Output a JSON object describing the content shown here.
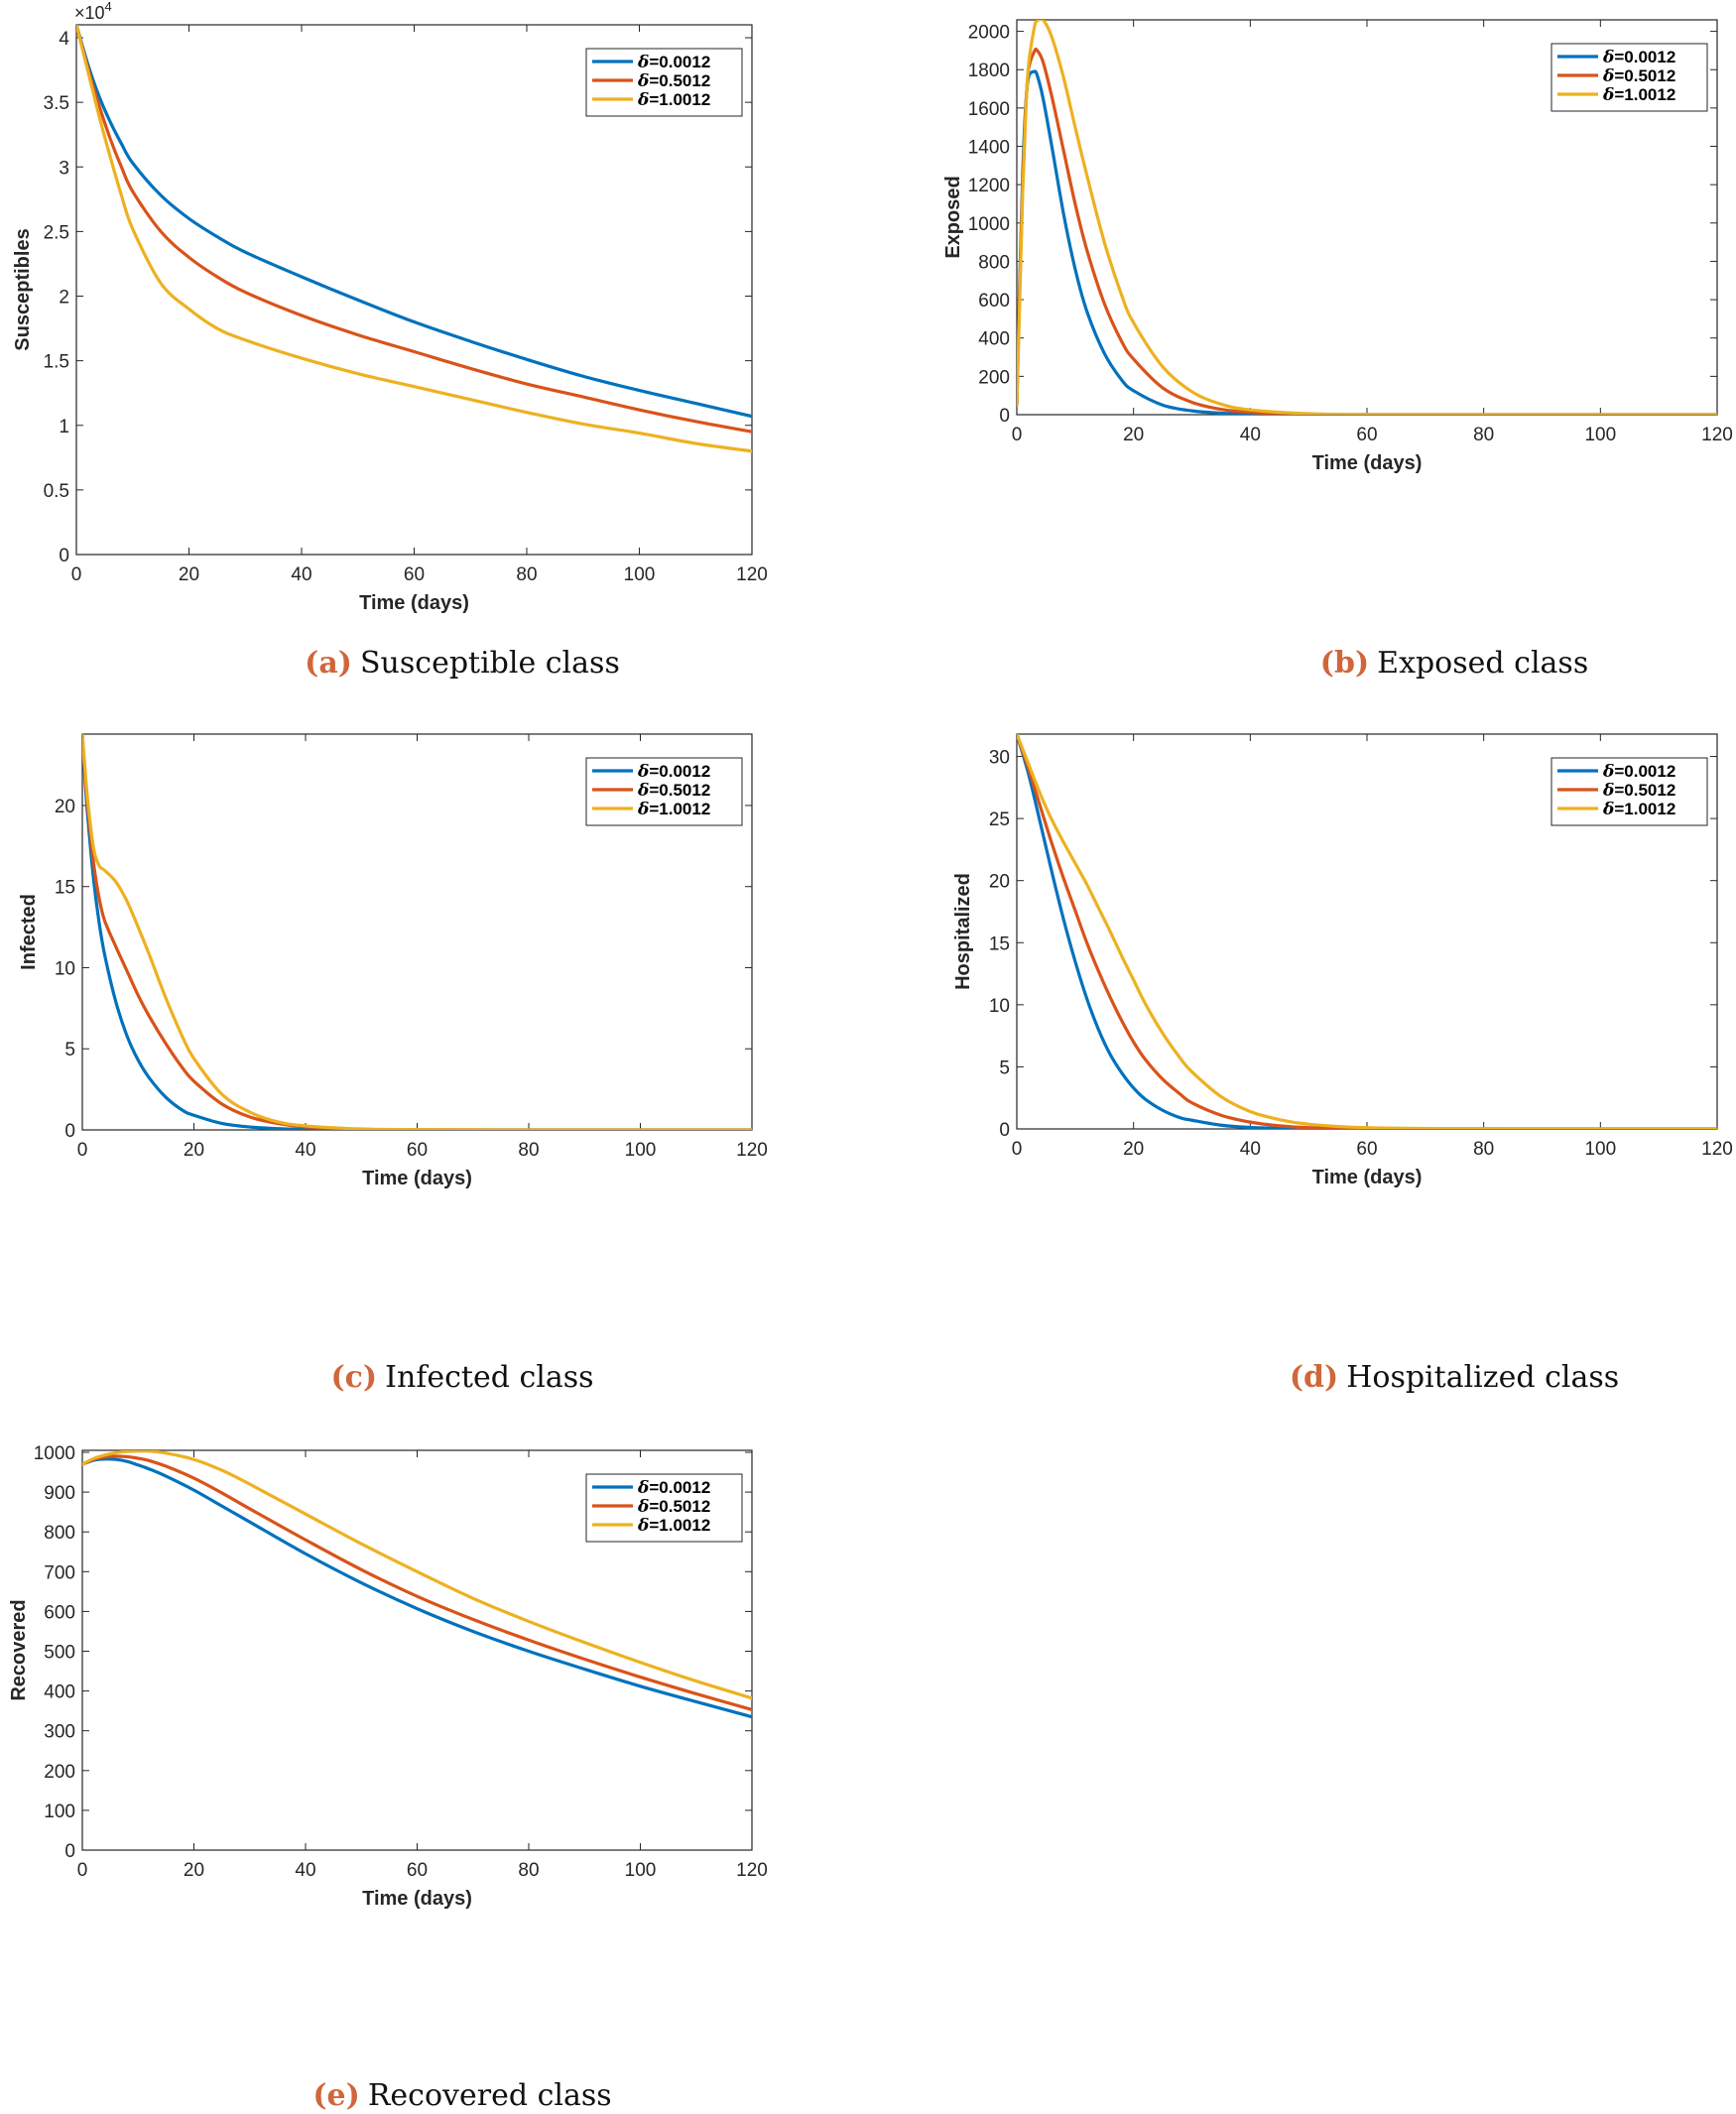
{
  "legend_colors": {
    "blue": "#0072bd",
    "red": "#d95319",
    "yellow": "#edb120"
  },
  "chart_data": [
    {
      "id": "a",
      "type": "line",
      "caption_label": "(a)",
      "caption_text": "Susceptible class",
      "xlabel": "Time (days)",
      "ylabel": "Susceptibles",
      "y_exponent": "×10",
      "y_exponent_power": "4",
      "xlim": [
        0,
        120
      ],
      "ylim": [
        0,
        4.1
      ],
      "xticks": [
        0,
        20,
        40,
        60,
        80,
        100,
        120
      ],
      "yticks": [
        0,
        0.5,
        1,
        1.5,
        2,
        2.5,
        3,
        3.5,
        4
      ],
      "ytick_labels": [
        "0",
        "0.5",
        "1",
        "1.5",
        "2",
        "2.5",
        "3",
        "3.5",
        "4"
      ],
      "legend_position": "top-right",
      "x": [
        0,
        2,
        4,
        6,
        8,
        10,
        15,
        20,
        25,
        30,
        40,
        50,
        60,
        70,
        80,
        90,
        100,
        110,
        120
      ],
      "series": [
        {
          "name": "δ=0.0012",
          "color": "#0072bd",
          "values": [
            4.1,
            3.8,
            3.55,
            3.35,
            3.18,
            3.03,
            2.78,
            2.6,
            2.46,
            2.34,
            2.15,
            1.97,
            1.8,
            1.65,
            1.51,
            1.38,
            1.27,
            1.17,
            1.07
          ]
        },
        {
          "name": "δ=0.5012",
          "color": "#d95319",
          "values": [
            4.1,
            3.77,
            3.48,
            3.22,
            3.0,
            2.81,
            2.5,
            2.3,
            2.15,
            2.03,
            1.85,
            1.7,
            1.57,
            1.44,
            1.32,
            1.22,
            1.12,
            1.03,
            0.95
          ]
        },
        {
          "name": "δ=1.0012",
          "color": "#edb120",
          "values": [
            4.1,
            3.75,
            3.4,
            3.08,
            2.78,
            2.52,
            2.1,
            1.9,
            1.75,
            1.66,
            1.52,
            1.4,
            1.3,
            1.2,
            1.1,
            1.01,
            0.94,
            0.86,
            0.8
          ]
        }
      ]
    },
    {
      "id": "b",
      "type": "line",
      "caption_label": "(b)",
      "caption_text": "Exposed class",
      "xlabel": "Time (days)",
      "ylabel": "Exposed",
      "xlim": [
        0,
        120
      ],
      "ylim": [
        0,
        2060
      ],
      "xticks": [
        0,
        20,
        40,
        60,
        80,
        100,
        120
      ],
      "yticks": [
        0,
        200,
        400,
        600,
        800,
        1000,
        1200,
        1400,
        1600,
        1800,
        2000
      ],
      "ytick_labels": [
        "0",
        "200",
        "400",
        "600",
        "800",
        "1000",
        "1200",
        "1400",
        "1600",
        "1800",
        "2000"
      ],
      "legend_position": "top-right",
      "x": [
        0,
        0.5,
        1,
        1.5,
        2,
        3,
        3.5,
        4.5,
        6,
        8,
        10,
        12,
        15,
        18,
        20,
        25,
        30,
        35,
        40,
        50,
        60,
        80,
        100,
        120
      ],
      "series": [
        {
          "name": "δ=0.0012",
          "color": "#0072bd",
          "values": [
            50,
            700,
            1250,
            1600,
            1760,
            1790,
            1770,
            1650,
            1400,
            1050,
            760,
            540,
            320,
            180,
            125,
            50,
            20,
            8,
            3,
            0.5,
            0,
            0,
            0,
            0
          ]
        },
        {
          "name": "δ=0.5012",
          "color": "#d95319",
          "values": [
            50,
            650,
            1200,
            1580,
            1800,
            1895,
            1900,
            1840,
            1660,
            1380,
            1100,
            860,
            580,
            380,
            290,
            140,
            65,
            28,
            12,
            2,
            0.3,
            0,
            0,
            0
          ]
        },
        {
          "name": "δ=1.0012",
          "color": "#edb120",
          "values": [
            50,
            600,
            1150,
            1550,
            1820,
            2020,
            2055,
            2060,
            1970,
            1760,
            1500,
            1250,
            900,
            620,
            480,
            250,
            120,
            55,
            25,
            5,
            1,
            0,
            0,
            0
          ]
        }
      ]
    },
    {
      "id": "c",
      "type": "line",
      "caption_label": "(c)",
      "caption_text": "Infected class",
      "xlabel": "Time (days)",
      "ylabel": "Infected",
      "xlim": [
        0,
        120
      ],
      "ylim": [
        0,
        24.4
      ],
      "xticks": [
        0,
        20,
        40,
        60,
        80,
        100,
        120
      ],
      "yticks": [
        0,
        5,
        10,
        15,
        20
      ],
      "ytick_labels": [
        "0",
        "5",
        "10",
        "15",
        "20"
      ],
      "legend_position": "top-right",
      "x": [
        0,
        0.5,
        1,
        2,
        3,
        4,
        6,
        8,
        10,
        12,
        15,
        18,
        20,
        25,
        30,
        35,
        40,
        50,
        60,
        80,
        100,
        120
      ],
      "series": [
        {
          "name": "δ=0.0012",
          "color": "#0072bd",
          "values": [
            24.4,
            21.5,
            19.2,
            15.5,
            12.8,
            10.8,
            7.9,
            5.8,
            4.3,
            3.2,
            2.0,
            1.2,
            0.9,
            0.4,
            0.18,
            0.08,
            0.03,
            0.005,
            0,
            0,
            0,
            0
          ]
        },
        {
          "name": "δ=0.5012",
          "color": "#d95319",
          "values": [
            24.4,
            21.8,
            19.8,
            16.5,
            14.3,
            12.9,
            11.3,
            9.8,
            8.3,
            7.0,
            5.3,
            3.8,
            3.0,
            1.6,
            0.8,
            0.4,
            0.18,
            0.04,
            0.01,
            0,
            0,
            0
          ]
        },
        {
          "name": "δ=1.0012",
          "color": "#edb120",
          "values": [
            24.4,
            22.2,
            20.2,
            17.4,
            16.3,
            16.0,
            15.3,
            14.1,
            12.5,
            10.8,
            8.1,
            5.7,
            4.4,
            2.2,
            1.1,
            0.5,
            0.25,
            0.06,
            0.02,
            0,
            0,
            0
          ]
        }
      ]
    },
    {
      "id": "d",
      "type": "line",
      "caption_label": "(d)",
      "caption_text": "Hospitalized class",
      "xlabel": "Time (days)",
      "ylabel": "Hospitalized",
      "xlim": [
        0,
        120
      ],
      "ylim": [
        0,
        31.8
      ],
      "xticks": [
        0,
        20,
        40,
        60,
        80,
        100,
        120
      ],
      "yticks": [
        0,
        5,
        10,
        15,
        20,
        25,
        30
      ],
      "ytick_labels": [
        "0",
        "5",
        "10",
        "15",
        "20",
        "25",
        "30"
      ],
      "legend_position": "top-right",
      "x": [
        0,
        2,
        4,
        6,
        8,
        10,
        12,
        14,
        16,
        18,
        20,
        22,
        25,
        28,
        30,
        35,
        40,
        45,
        50,
        60,
        80,
        100,
        120
      ],
      "series": [
        {
          "name": "δ=0.0012",
          "color": "#0072bd",
          "values": [
            31.8,
            28.6,
            24.7,
            20.7,
            16.9,
            13.5,
            10.5,
            8.0,
            6.0,
            4.5,
            3.3,
            2.4,
            1.5,
            0.9,
            0.7,
            0.3,
            0.12,
            0.05,
            0.02,
            0,
            0,
            0,
            0
          ]
        },
        {
          "name": "δ=0.5012",
          "color": "#d95319",
          "values": [
            31.8,
            29.0,
            26.0,
            23.0,
            20.2,
            17.6,
            15.0,
            12.7,
            10.6,
            8.7,
            7.0,
            5.6,
            4.0,
            2.8,
            2.1,
            1.1,
            0.55,
            0.25,
            0.1,
            0.02,
            0,
            0,
            0
          ]
        },
        {
          "name": "δ=1.0012",
          "color": "#edb120",
          "values": [
            31.8,
            29.4,
            27.0,
            24.9,
            23.1,
            21.4,
            19.7,
            17.8,
            15.9,
            13.9,
            12.0,
            10.1,
            7.7,
            5.7,
            4.6,
            2.6,
            1.4,
            0.75,
            0.38,
            0.1,
            0.01,
            0,
            0
          ]
        }
      ]
    },
    {
      "id": "e",
      "type": "line",
      "caption_label": "(e)",
      "caption_text": "Recovered class",
      "xlabel": "Time (days)",
      "ylabel": "Recovered",
      "xlim": [
        0,
        120
      ],
      "ylim": [
        0,
        1005
      ],
      "xticks": [
        0,
        20,
        40,
        60,
        80,
        100,
        120
      ],
      "yticks": [
        0,
        100,
        200,
        300,
        400,
        500,
        600,
        700,
        800,
        900,
        1000
      ],
      "ytick_labels": [
        "0",
        "100",
        "200",
        "300",
        "400",
        "500",
        "600",
        "700",
        "800",
        "900",
        "1000"
      ],
      "legend_position": "top-right",
      "x": [
        0,
        2,
        4,
        6,
        8,
        10,
        12,
        15,
        20,
        25,
        30,
        40,
        50,
        60,
        70,
        80,
        90,
        100,
        110,
        120
      ],
      "series": [
        {
          "name": "δ=0.0012",
          "color": "#0072bd",
          "values": [
            970,
            980,
            983,
            982,
            977,
            968,
            958,
            940,
            905,
            865,
            825,
            745,
            672,
            607,
            550,
            500,
            455,
            412,
            373,
            335
          ]
        },
        {
          "name": "δ=0.5012",
          "color": "#d95319",
          "values": [
            970,
            982,
            988,
            990,
            989,
            985,
            979,
            965,
            935,
            898,
            858,
            780,
            705,
            638,
            580,
            528,
            480,
            435,
            393,
            353
          ]
        },
        {
          "name": "δ=1.0012",
          "color": "#edb120",
          "values": [
            970,
            984,
            993,
            999,
            1002,
            1003,
            1003,
            998,
            982,
            955,
            920,
            845,
            770,
            700,
            633,
            575,
            522,
            472,
            425,
            382
          ]
        }
      ]
    }
  ]
}
